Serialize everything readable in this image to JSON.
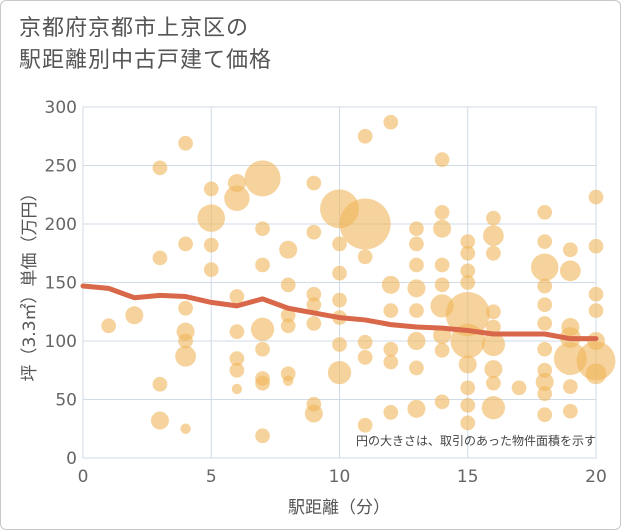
{
  "title_lines": [
    "京都府京都市上京区の",
    "駅距離別中古戸建て価格"
  ],
  "chart_data": {
    "type": "scatter",
    "title": "京都府京都市上京区の駅距離別中古戸建て価格",
    "xlabel": "駅距離（分）",
    "ylabel": "坪（3.3㎡）単価（万円）",
    "xlim": [
      0,
      20
    ],
    "ylim": [
      0,
      300
    ],
    "xticks": [
      0,
      5,
      10,
      15,
      20
    ],
    "yticks": [
      0,
      50,
      100,
      150,
      200,
      250,
      300
    ],
    "grid": true,
    "annotation": "円の大きさは、取引のあった物件面積を示す",
    "colors": {
      "bubble": "#f0b65a",
      "trend": "#d9684a",
      "grid": "#cfdbe6"
    },
    "trend_line": {
      "x": [
        0,
        1,
        2,
        3,
        4,
        5,
        6,
        7,
        8,
        9,
        10,
        11,
        12,
        13,
        14,
        15,
        16,
        17,
        18,
        19,
        20
      ],
      "y": [
        147,
        145,
        137,
        139,
        138,
        133,
        130,
        136,
        128,
        124,
        120,
        118,
        114,
        112,
        111,
        109,
        106,
        106,
        106,
        102,
        102
      ]
    },
    "points": [
      {
        "x": 1,
        "y": 113,
        "size": 2
      },
      {
        "x": 2,
        "y": 122,
        "size": 3
      },
      {
        "x": 3,
        "y": 248,
        "size": 2
      },
      {
        "x": 3,
        "y": 171,
        "size": 2
      },
      {
        "x": 3,
        "y": 63,
        "size": 2
      },
      {
        "x": 3,
        "y": 32,
        "size": 3
      },
      {
        "x": 4,
        "y": 269,
        "size": 2
      },
      {
        "x": 4,
        "y": 183,
        "size": 2
      },
      {
        "x": 4,
        "y": 128,
        "size": 2
      },
      {
        "x": 4,
        "y": 108,
        "size": 3
      },
      {
        "x": 4,
        "y": 100,
        "size": 2
      },
      {
        "x": 4,
        "y": 87,
        "size": 4
      },
      {
        "x": 4,
        "y": 25,
        "size": 1
      },
      {
        "x": 5,
        "y": 230,
        "size": 2
      },
      {
        "x": 5,
        "y": 205,
        "size": 7
      },
      {
        "x": 5,
        "y": 182,
        "size": 2
      },
      {
        "x": 5,
        "y": 161,
        "size": 2
      },
      {
        "x": 6,
        "y": 235,
        "size": 3
      },
      {
        "x": 6,
        "y": 222,
        "size": 6
      },
      {
        "x": 6,
        "y": 138,
        "size": 2
      },
      {
        "x": 6,
        "y": 108,
        "size": 2
      },
      {
        "x": 6,
        "y": 85,
        "size": 2
      },
      {
        "x": 6,
        "y": 75,
        "size": 2
      },
      {
        "x": 6,
        "y": 59,
        "size": 1
      },
      {
        "x": 7,
        "y": 239,
        "size": 12
      },
      {
        "x": 7,
        "y": 196,
        "size": 2
      },
      {
        "x": 7,
        "y": 165,
        "size": 2
      },
      {
        "x": 7,
        "y": 110,
        "size": 5
      },
      {
        "x": 7,
        "y": 93,
        "size": 2
      },
      {
        "x": 7,
        "y": 68,
        "size": 2
      },
      {
        "x": 7,
        "y": 64,
        "size": 2
      },
      {
        "x": 7,
        "y": 19,
        "size": 2
      },
      {
        "x": 8,
        "y": 178,
        "size": 3
      },
      {
        "x": 8,
        "y": 148,
        "size": 2
      },
      {
        "x": 8,
        "y": 122,
        "size": 2
      },
      {
        "x": 8,
        "y": 113,
        "size": 2
      },
      {
        "x": 8,
        "y": 72,
        "size": 2
      },
      {
        "x": 8,
        "y": 66,
        "size": 1
      },
      {
        "x": 9,
        "y": 235,
        "size": 2
      },
      {
        "x": 9,
        "y": 193,
        "size": 2
      },
      {
        "x": 9,
        "y": 140,
        "size": 2
      },
      {
        "x": 9,
        "y": 131,
        "size": 2
      },
      {
        "x": 9,
        "y": 115,
        "size": 2
      },
      {
        "x": 9,
        "y": 46,
        "size": 2
      },
      {
        "x": 9,
        "y": 38,
        "size": 3
      },
      {
        "x": 10,
        "y": 213,
        "size": 14
      },
      {
        "x": 10,
        "y": 183,
        "size": 2
      },
      {
        "x": 10,
        "y": 158,
        "size": 2
      },
      {
        "x": 10,
        "y": 135,
        "size": 2
      },
      {
        "x": 10,
        "y": 120,
        "size": 2
      },
      {
        "x": 10,
        "y": 97,
        "size": 2
      },
      {
        "x": 10,
        "y": 73,
        "size": 5
      },
      {
        "x": 11,
        "y": 275,
        "size": 2
      },
      {
        "x": 11,
        "y": 200,
        "size": 24
      },
      {
        "x": 11,
        "y": 172,
        "size": 2
      },
      {
        "x": 11,
        "y": 99,
        "size": 2
      },
      {
        "x": 11,
        "y": 86,
        "size": 2
      },
      {
        "x": 11,
        "y": 28,
        "size": 2
      },
      {
        "x": 12,
        "y": 287,
        "size": 2
      },
      {
        "x": 12,
        "y": 148,
        "size": 3
      },
      {
        "x": 12,
        "y": 126,
        "size": 2
      },
      {
        "x": 12,
        "y": 93,
        "size": 2
      },
      {
        "x": 12,
        "y": 82,
        "size": 2
      },
      {
        "x": 12,
        "y": 39,
        "size": 2
      },
      {
        "x": 13,
        "y": 196,
        "size": 2
      },
      {
        "x": 13,
        "y": 183,
        "size": 2
      },
      {
        "x": 13,
        "y": 165,
        "size": 2
      },
      {
        "x": 13,
        "y": 145,
        "size": 3
      },
      {
        "x": 13,
        "y": 126,
        "size": 2
      },
      {
        "x": 13,
        "y": 100,
        "size": 3
      },
      {
        "x": 13,
        "y": 77,
        "size": 2
      },
      {
        "x": 13,
        "y": 42,
        "size": 3
      },
      {
        "x": 14,
        "y": 255,
        "size": 2
      },
      {
        "x": 14,
        "y": 210,
        "size": 2
      },
      {
        "x": 14,
        "y": 196,
        "size": 3
      },
      {
        "x": 14,
        "y": 165,
        "size": 2
      },
      {
        "x": 14,
        "y": 148,
        "size": 2
      },
      {
        "x": 14,
        "y": 130,
        "size": 5
      },
      {
        "x": 14,
        "y": 105,
        "size": 3
      },
      {
        "x": 14,
        "y": 92,
        "size": 2
      },
      {
        "x": 14,
        "y": 48,
        "size": 2
      },
      {
        "x": 15,
        "y": 185,
        "size": 2
      },
      {
        "x": 15,
        "y": 175,
        "size": 2
      },
      {
        "x": 15,
        "y": 160,
        "size": 2
      },
      {
        "x": 15,
        "y": 150,
        "size": 2
      },
      {
        "x": 15,
        "y": 123,
        "size": 18
      },
      {
        "x": 15,
        "y": 100,
        "size": 11
      },
      {
        "x": 15,
        "y": 80,
        "size": 3
      },
      {
        "x": 15,
        "y": 60,
        "size": 2
      },
      {
        "x": 15,
        "y": 45,
        "size": 2
      },
      {
        "x": 15,
        "y": 30,
        "size": 2
      },
      {
        "x": 16,
        "y": 205,
        "size": 2
      },
      {
        "x": 16,
        "y": 190,
        "size": 4
      },
      {
        "x": 16,
        "y": 175,
        "size": 2
      },
      {
        "x": 16,
        "y": 125,
        "size": 2
      },
      {
        "x": 16,
        "y": 112,
        "size": 2
      },
      {
        "x": 16,
        "y": 97,
        "size": 5
      },
      {
        "x": 16,
        "y": 76,
        "size": 3
      },
      {
        "x": 16,
        "y": 64,
        "size": 2
      },
      {
        "x": 16,
        "y": 43,
        "size": 5
      },
      {
        "x": 17,
        "y": 60,
        "size": 2
      },
      {
        "x": 18,
        "y": 210,
        "size": 2
      },
      {
        "x": 18,
        "y": 185,
        "size": 2
      },
      {
        "x": 18,
        "y": 163,
        "size": 7
      },
      {
        "x": 18,
        "y": 147,
        "size": 2
      },
      {
        "x": 18,
        "y": 131,
        "size": 2
      },
      {
        "x": 18,
        "y": 115,
        "size": 2
      },
      {
        "x": 18,
        "y": 93,
        "size": 2
      },
      {
        "x": 18,
        "y": 75,
        "size": 2
      },
      {
        "x": 18,
        "y": 65,
        "size": 3
      },
      {
        "x": 18,
        "y": 55,
        "size": 2
      },
      {
        "x": 18,
        "y": 37,
        "size": 2
      },
      {
        "x": 19,
        "y": 178,
        "size": 2
      },
      {
        "x": 19,
        "y": 160,
        "size": 4
      },
      {
        "x": 19,
        "y": 112,
        "size": 3
      },
      {
        "x": 19,
        "y": 103,
        "size": 4
      },
      {
        "x": 19,
        "y": 85,
        "size": 10
      },
      {
        "x": 19,
        "y": 61,
        "size": 2
      },
      {
        "x": 19,
        "y": 40,
        "size": 2
      },
      {
        "x": 20,
        "y": 223,
        "size": 2
      },
      {
        "x": 20,
        "y": 181,
        "size": 2
      },
      {
        "x": 20,
        "y": 140,
        "size": 2
      },
      {
        "x": 20,
        "y": 126,
        "size": 2
      },
      {
        "x": 20,
        "y": 100,
        "size": 3
      },
      {
        "x": 20,
        "y": 83,
        "size": 14
      },
      {
        "x": 20,
        "y": 72,
        "size": 4
      }
    ]
  }
}
